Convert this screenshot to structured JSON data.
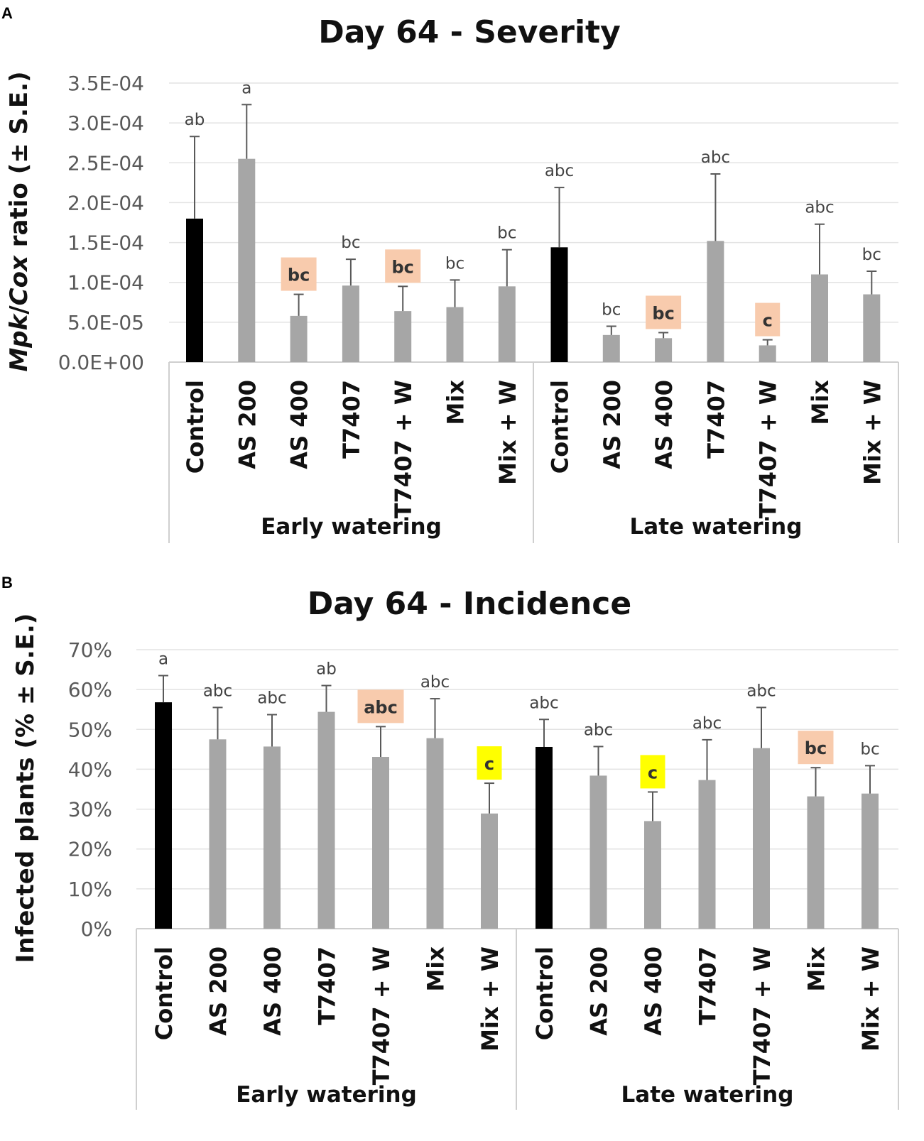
{
  "chart_data": [
    {
      "panel": "A",
      "type": "bar",
      "title": "Day 64 - Severity",
      "ylabel_parts": [
        {
          "text": "Mpk",
          "italic": true
        },
        {
          "text": "/",
          "italic": false
        },
        {
          "text": "Cox",
          "italic": true
        },
        {
          "text": " ratio (± S.E.)",
          "italic": false
        }
      ],
      "ylim": [
        0,
        0.00035
      ],
      "yticks": [
        0,
        5e-05,
        0.0001,
        0.00015,
        0.0002,
        0.00025,
        0.0003,
        0.00035
      ],
      "ytick_labels": [
        "0.0E+00",
        "5.0E-05",
        "1.0E-04",
        "1.5E-04",
        "2.0E-04",
        "2.5E-04",
        "3.0E-04",
        "3.5E-04"
      ],
      "grid": true,
      "groups": [
        {
          "name": "Early watering",
          "categories": [
            "Control",
            "AS 200",
            "AS 400",
            "T7407",
            "T7407 + W",
            "Mix",
            "Mix + W"
          ],
          "values": [
            0.00018,
            0.000255,
            5.8e-05,
            9.6e-05,
            6.4e-05,
            6.9e-05,
            9.5e-05
          ],
          "errors": [
            0.000103,
            6.8e-05,
            2.7e-05,
            3.3e-05,
            3.1e-05,
            3.4e-05,
            4.6e-05
          ],
          "letters": [
            "ab",
            "a",
            "bc",
            "bc",
            "bc",
            "bc",
            "bc"
          ],
          "highlight": [
            "",
            "",
            "peach",
            "",
            "peach",
            "",
            ""
          ],
          "colors": [
            "#000000",
            "#a6a6a6",
            "#a6a6a6",
            "#a6a6a6",
            "#a6a6a6",
            "#a6a6a6",
            "#a6a6a6"
          ]
        },
        {
          "name": "Late watering",
          "categories": [
            "Control",
            "AS 200",
            "AS 400",
            "T7407",
            "T7407 + W",
            "Mix",
            "Mix + W"
          ],
          "values": [
            0.000144,
            3.4e-05,
            3e-05,
            0.000152,
            2.1e-05,
            0.00011,
            8.5e-05
          ],
          "errors": [
            7.5e-05,
            1.1e-05,
            7e-06,
            8.4e-05,
            7e-06,
            6.3e-05,
            2.9e-05
          ],
          "letters": [
            "abc",
            "bc",
            "bc",
            "abc",
            "c",
            "abc",
            "bc"
          ],
          "highlight": [
            "",
            "",
            "peach",
            "",
            "peach",
            "",
            ""
          ],
          "colors": [
            "#000000",
            "#a6a6a6",
            "#a6a6a6",
            "#a6a6a6",
            "#a6a6a6",
            "#a6a6a6",
            "#a6a6a6"
          ]
        }
      ]
    },
    {
      "panel": "B",
      "type": "bar",
      "title": "Day 64 - Incidence",
      "ylabel_parts": [
        {
          "text": "Infected plants (% ± S.E.)",
          "italic": false
        }
      ],
      "ylim": [
        0,
        70
      ],
      "yticks": [
        0,
        10,
        20,
        30,
        40,
        50,
        60,
        70
      ],
      "ytick_labels": [
        "0%",
        "10%",
        "20%",
        "30%",
        "40%",
        "50%",
        "60%",
        "70%"
      ],
      "grid": true,
      "groups": [
        {
          "name": "Early watering",
          "categories": [
            "Control",
            "AS 200",
            "AS 400",
            "T7407",
            "T7407 + W",
            "Mix",
            "Mix + W"
          ],
          "values": [
            56.8,
            47.5,
            45.7,
            54.4,
            43.1,
            47.8,
            28.9
          ],
          "errors": [
            6.7,
            8.0,
            8.0,
            6.6,
            7.6,
            9.9,
            7.6
          ],
          "letters": [
            "a",
            "abc",
            "abc",
            "ab",
            "abc",
            "abc",
            "c"
          ],
          "highlight": [
            "",
            "",
            "",
            "",
            "peach",
            "",
            "yellow"
          ],
          "colors": [
            "#000000",
            "#a6a6a6",
            "#a6a6a6",
            "#a6a6a6",
            "#a6a6a6",
            "#a6a6a6",
            "#a6a6a6"
          ]
        },
        {
          "name": "Late watering",
          "categories": [
            "Control",
            "AS 200",
            "AS 400",
            "T7407",
            "T7407 + W",
            "Mix",
            "Mix + W"
          ],
          "values": [
            45.6,
            38.4,
            27.0,
            37.3,
            45.3,
            33.2,
            33.9
          ],
          "errors": [
            6.9,
            7.3,
            7.3,
            10.1,
            10.2,
            7.2,
            7.0
          ],
          "letters": [
            "abc",
            "abc",
            "c",
            "abc",
            "abc",
            "bc",
            "bc"
          ],
          "highlight": [
            "",
            "",
            "yellow",
            "",
            "",
            "peach",
            ""
          ],
          "colors": [
            "#000000",
            "#a6a6a6",
            "#a6a6a6",
            "#a6a6a6",
            "#a6a6a6",
            "#a6a6a6",
            "#a6a6a6"
          ]
        }
      ]
    }
  ],
  "highlight_colors": {
    "peach": "#f8cbad",
    "yellow": "#ffff00"
  }
}
